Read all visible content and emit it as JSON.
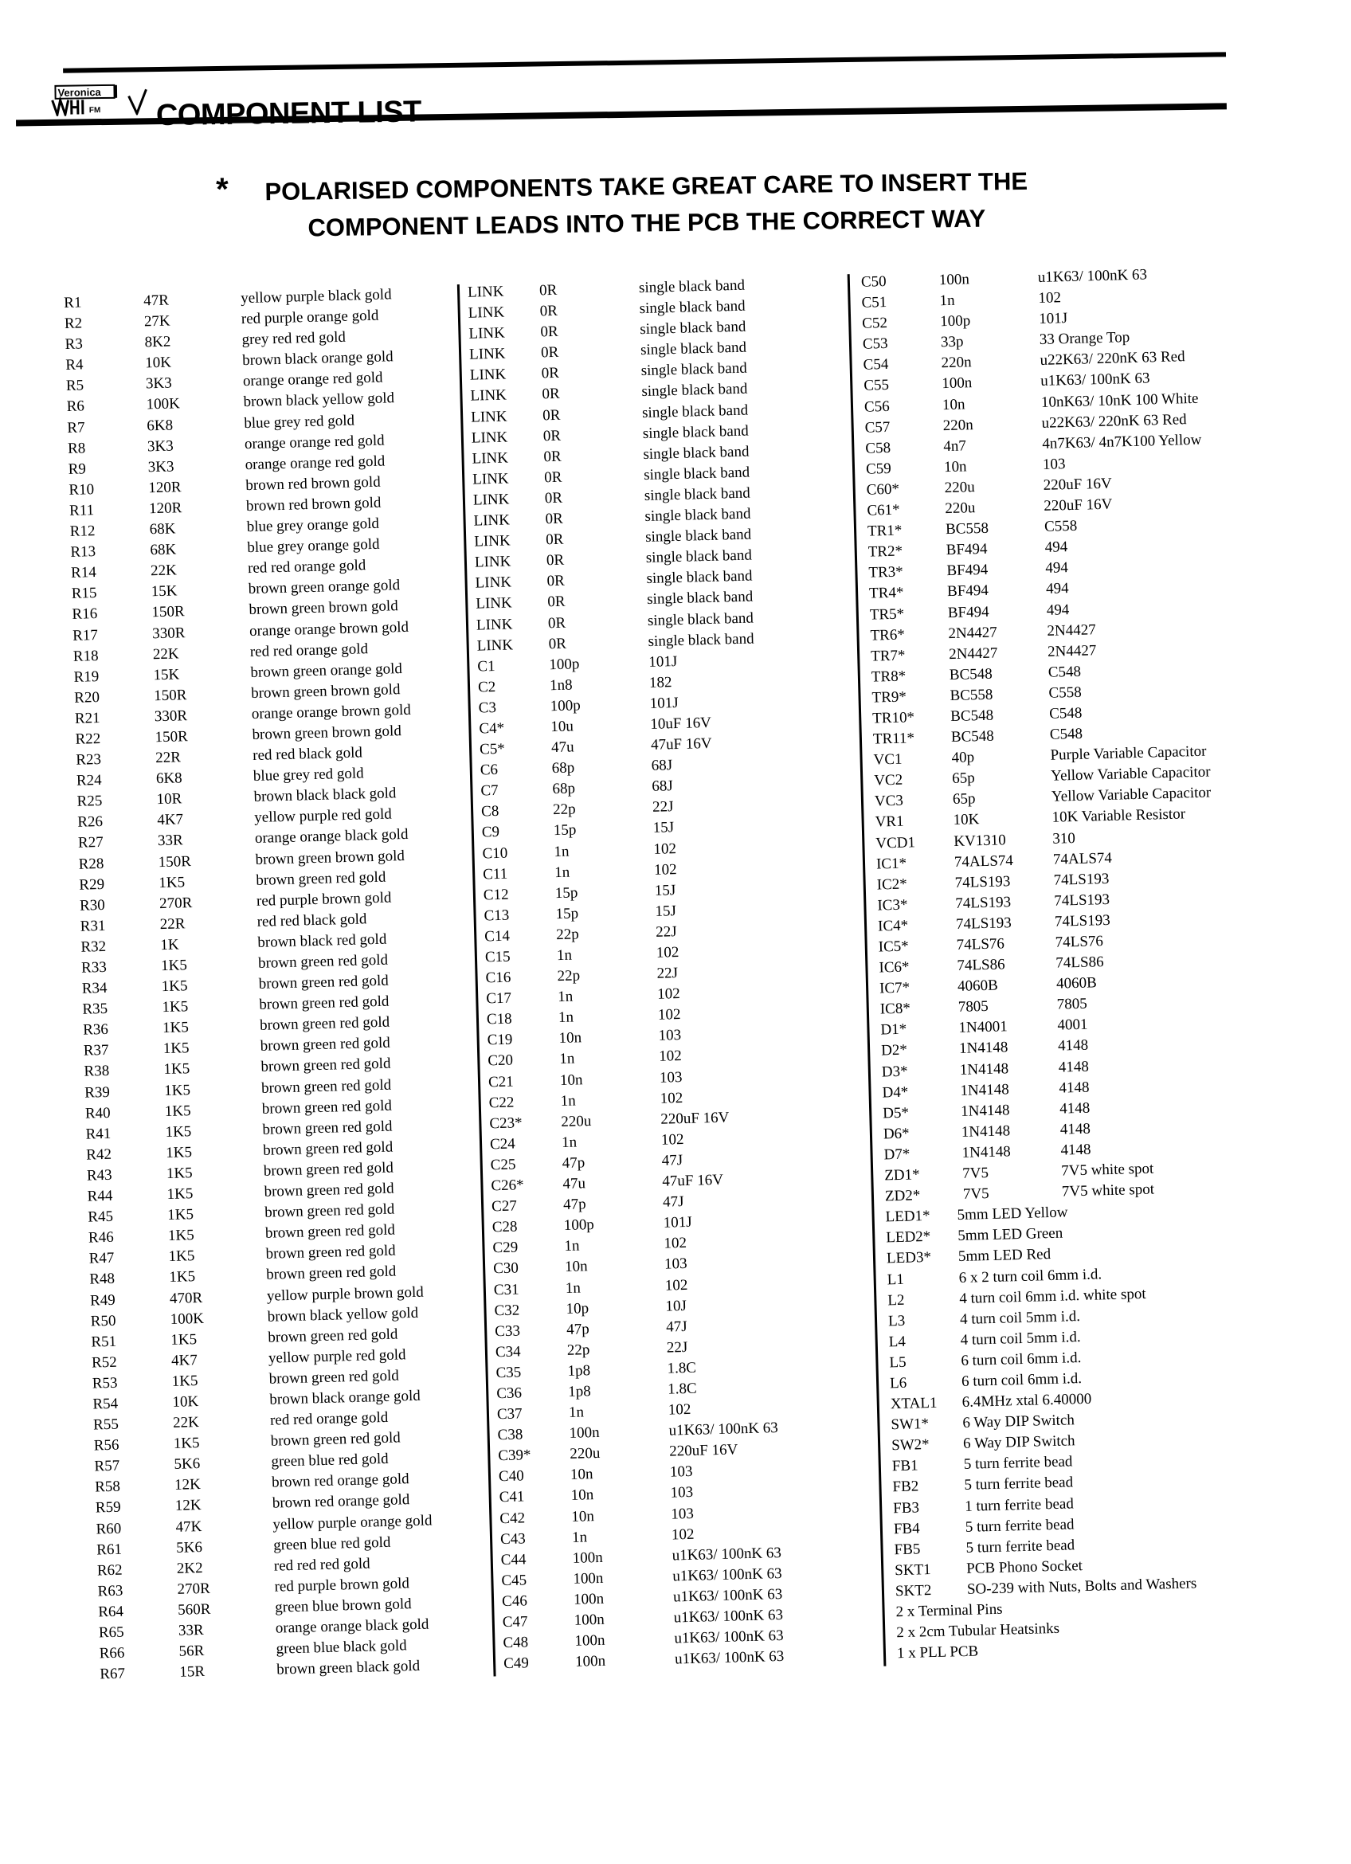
{
  "header": {
    "logo_text": "Veronica VHF FM",
    "title": "COMPONENT LIST",
    "notice_star": "*",
    "notice_line1": "POLARISED COMPONENTS TAKE GREAT CARE TO INSERT THE",
    "notice_line2": "COMPONENT LEADS INTO THE PCB THE CORRECT WAY"
  },
  "columns": [
    [
      [
        "R1",
        "47R",
        "yellow purple black gold"
      ],
      [
        "R2",
        "27K",
        "red purple orange gold"
      ],
      [
        "R3",
        "8K2",
        "grey red red gold"
      ],
      [
        "R4",
        "10K",
        "brown black orange gold"
      ],
      [
        "R5",
        "3K3",
        "orange orange red gold"
      ],
      [
        "R6",
        "100K",
        "brown black yellow gold"
      ],
      [
        "R7",
        "6K8",
        "blue grey red gold"
      ],
      [
        "R8",
        "3K3",
        "orange orange red gold"
      ],
      [
        "R9",
        "3K3",
        "orange orange red gold"
      ],
      [
        "R10",
        "120R",
        "brown red brown gold"
      ],
      [
        "R11",
        "120R",
        "brown red brown gold"
      ],
      [
        "R12",
        "68K",
        "blue grey orange gold"
      ],
      [
        "R13",
        "68K",
        "blue grey orange gold"
      ],
      [
        "R14",
        "22K",
        "red red orange gold"
      ],
      [
        "R15",
        "15K",
        "brown green orange gold"
      ],
      [
        "R16",
        "150R",
        "brown green brown gold"
      ],
      [
        "R17",
        "330R",
        "orange orange brown gold"
      ],
      [
        "R18",
        "22K",
        "red red orange gold"
      ],
      [
        "R19",
        "15K",
        "brown green orange gold"
      ],
      [
        "R20",
        "150R",
        "brown green brown gold"
      ],
      [
        "R21",
        "330R",
        "orange orange brown gold"
      ],
      [
        "R22",
        "150R",
        "brown green brown gold"
      ],
      [
        "R23",
        "22R",
        "red red black gold"
      ],
      [
        "R24",
        "6K8",
        "blue grey red gold"
      ],
      [
        "R25",
        "10R",
        "brown black black gold"
      ],
      [
        "R26",
        "4K7",
        "yellow purple red gold"
      ],
      [
        "R27",
        "33R",
        "orange orange black gold"
      ],
      [
        "R28",
        "150R",
        "brown green brown gold"
      ],
      [
        "R29",
        "1K5",
        "brown green red gold"
      ],
      [
        "R30",
        "270R",
        "red purple brown gold"
      ],
      [
        "R31",
        "22R",
        "red red black gold"
      ],
      [
        "R32",
        "1K",
        "brown black red gold"
      ],
      [
        "R33",
        "1K5",
        "brown green red gold"
      ],
      [
        "R34",
        "1K5",
        "brown green red gold"
      ],
      [
        "R35",
        "1K5",
        "brown green red gold"
      ],
      [
        "R36",
        "1K5",
        "brown green red gold"
      ],
      [
        "R37",
        "1K5",
        "brown green red gold"
      ],
      [
        "R38",
        "1K5",
        "brown green red gold"
      ],
      [
        "R39",
        "1K5",
        "brown green red gold"
      ],
      [
        "R40",
        "1K5",
        "brown green red gold"
      ],
      [
        "R41",
        "1K5",
        "brown green red gold"
      ],
      [
        "R42",
        "1K5",
        "brown green red gold"
      ],
      [
        "R43",
        "1K5",
        "brown green red gold"
      ],
      [
        "R44",
        "1K5",
        "brown green red gold"
      ],
      [
        "R45",
        "1K5",
        "brown green red gold"
      ],
      [
        "R46",
        "1K5",
        "brown green red gold"
      ],
      [
        "R47",
        "1K5",
        "brown green red gold"
      ],
      [
        "R48",
        "1K5",
        "brown green red gold"
      ],
      [
        "R49",
        "470R",
        "yellow purple brown gold"
      ],
      [
        "R50",
        "100K",
        "brown black yellow gold"
      ],
      [
        "R51",
        "1K5",
        "brown green red gold"
      ],
      [
        "R52",
        "4K7",
        "yellow purple red gold"
      ],
      [
        "R53",
        "1K5",
        "brown green red gold"
      ],
      [
        "R54",
        "10K",
        "brown black orange gold"
      ],
      [
        "R55",
        "22K",
        "red red orange gold"
      ],
      [
        "R56",
        "1K5",
        "brown green red gold"
      ],
      [
        "R57",
        "5K6",
        "green blue red gold"
      ],
      [
        "R58",
        "12K",
        "brown red orange gold"
      ],
      [
        "R59",
        "12K",
        "brown red orange gold"
      ],
      [
        "R60",
        "47K",
        "yellow purple orange gold"
      ],
      [
        "R61",
        "5K6",
        "green blue red gold"
      ],
      [
        "R62",
        "2K2",
        "red red red gold"
      ],
      [
        "R63",
        "270R",
        "red purple brown gold"
      ],
      [
        "R64",
        "560R",
        "green blue brown gold"
      ],
      [
        "R65",
        "33R",
        "orange orange black gold"
      ],
      [
        "R66",
        "56R",
        "green blue black gold"
      ],
      [
        "R67",
        "15R",
        "brown green black gold"
      ]
    ],
    [
      [
        "LINK",
        "0R",
        "single black band"
      ],
      [
        "LINK",
        "0R",
        "single black band"
      ],
      [
        "LINK",
        "0R",
        "single black band"
      ],
      [
        "LINK",
        "0R",
        "single black band"
      ],
      [
        "LINK",
        "0R",
        "single black band"
      ],
      [
        "LINK",
        "0R",
        "single black band"
      ],
      [
        "LINK",
        "0R",
        "single black band"
      ],
      [
        "LINK",
        "0R",
        "single black band"
      ],
      [
        "LINK",
        "0R",
        "single black band"
      ],
      [
        "LINK",
        "0R",
        "single black band"
      ],
      [
        "LINK",
        "0R",
        "single black band"
      ],
      [
        "LINK",
        "0R",
        "single black band"
      ],
      [
        "LINK",
        "0R",
        "single black band"
      ],
      [
        "LINK",
        "0R",
        "single black band"
      ],
      [
        "LINK",
        "0R",
        "single black band"
      ],
      [
        "LINK",
        "0R",
        "single black band"
      ],
      [
        "LINK",
        "0R",
        "single black band"
      ],
      [
        "LINK",
        "0R",
        "single black band"
      ],
      [
        "C1",
        "100p",
        "101J"
      ],
      [
        "C2",
        "1n8",
        "182"
      ],
      [
        "C3",
        "100p",
        "101J"
      ],
      [
        "C4*",
        "10u",
        "10uF 16V"
      ],
      [
        "C5*",
        "47u",
        "47uF 16V"
      ],
      [
        "C6",
        "68p",
        "68J"
      ],
      [
        "C7",
        "68p",
        "68J"
      ],
      [
        "C8",
        "22p",
        "22J"
      ],
      [
        "C9",
        "15p",
        "15J"
      ],
      [
        "C10",
        "1n",
        "102"
      ],
      [
        "C11",
        "1n",
        "102"
      ],
      [
        "C12",
        "15p",
        "15J"
      ],
      [
        "C13",
        "15p",
        "15J"
      ],
      [
        "C14",
        "22p",
        "22J"
      ],
      [
        "C15",
        "1n",
        "102"
      ],
      [
        "C16",
        "22p",
        "22J"
      ],
      [
        "C17",
        "1n",
        "102"
      ],
      [
        "C18",
        "1n",
        "102"
      ],
      [
        "C19",
        "10n",
        "103"
      ],
      [
        "C20",
        "1n",
        "102"
      ],
      [
        "C21",
        "10n",
        "103"
      ],
      [
        "C22",
        "1n",
        "102"
      ],
      [
        "C23*",
        "220u",
        "220uF 16V"
      ],
      [
        "C24",
        "1n",
        "102"
      ],
      [
        "C25",
        "47p",
        "47J"
      ],
      [
        "C26*",
        "47u",
        "47uF 16V"
      ],
      [
        "C27",
        "47p",
        "47J"
      ],
      [
        "C28",
        "100p",
        "101J"
      ],
      [
        "C29",
        "1n",
        "102"
      ],
      [
        "C30",
        "10n",
        "103"
      ],
      [
        "C31",
        "1n",
        "102"
      ],
      [
        "C32",
        "10p",
        "10J"
      ],
      [
        "C33",
        "47p",
        "47J"
      ],
      [
        "C34",
        "22p",
        "22J"
      ],
      [
        "C35",
        "1p8",
        "1.8C"
      ],
      [
        "C36",
        "1p8",
        "1.8C"
      ],
      [
        "C37",
        "1n",
        "102"
      ],
      [
        "C38",
        "100n",
        "u1K63/ 100nK 63"
      ],
      [
        "C39*",
        "220u",
        "220uF 16V"
      ],
      [
        "C40",
        "10n",
        "103"
      ],
      [
        "C41",
        "10n",
        "103"
      ],
      [
        "C42",
        "10n",
        "103"
      ],
      [
        "C43",
        "1n",
        "102"
      ],
      [
        "C44",
        "100n",
        "u1K63/ 100nK 63"
      ],
      [
        "C45",
        "100n",
        "u1K63/ 100nK 63"
      ],
      [
        "C46",
        "100n",
        "u1K63/ 100nK 63"
      ],
      [
        "C47",
        "100n",
        "u1K63/ 100nK 63"
      ],
      [
        "C48",
        "100n",
        "u1K63/ 100nK 63"
      ],
      [
        "C49",
        "100n",
        "u1K63/ 100nK 63"
      ]
    ],
    [
      [
        "C50",
        "100n",
        "u1K63/ 100nK 63"
      ],
      [
        "C51",
        "1n",
        "102"
      ],
      [
        "C52",
        "100p",
        "101J"
      ],
      [
        "C53",
        "33p",
        "33 Orange Top"
      ],
      [
        "C54",
        "220n",
        "u22K63/ 220nK 63 Red"
      ],
      [
        "C55",
        "100n",
        "u1K63/ 100nK 63"
      ],
      [
        "C56",
        "10n",
        "10nK63/ 10nK 100 White"
      ],
      [
        "C57",
        "220n",
        "u22K63/ 220nK 63 Red"
      ],
      [
        "C58",
        "4n7",
        "4n7K63/ 4n7K100 Yellow"
      ],
      [
        "C59",
        "10n",
        "103"
      ],
      [
        "C60*",
        "220u",
        "220uF 16V"
      ],
      [
        "C61*",
        "220u",
        "220uF 16V"
      ],
      [
        "TR1*",
        "BC558",
        "C558"
      ],
      [
        "TR2*",
        "BF494",
        "494"
      ],
      [
        "TR3*",
        "BF494",
        "494"
      ],
      [
        "TR4*",
        "BF494",
        "494"
      ],
      [
        "TR5*",
        "BF494",
        "494"
      ],
      [
        "TR6*",
        "2N4427",
        "2N4427"
      ],
      [
        "TR7*",
        "2N4427",
        "2N4427"
      ],
      [
        "TR8*",
        "BC548",
        "C548"
      ],
      [
        "TR9*",
        "BC558",
        "C558"
      ],
      [
        "TR10*",
        "BC548",
        "C548"
      ],
      [
        "TR11*",
        "BC548",
        "C548"
      ],
      [
        "VC1",
        "40p",
        "Purple Variable Capacitor"
      ],
      [
        "VC2",
        "65p",
        "Yellow Variable Capacitor"
      ],
      [
        "VC3",
        "65p",
        "Yellow Variable Capacitor"
      ],
      [
        "VR1",
        "10K",
        "10K Variable Resistor"
      ],
      [
        "VCD1",
        "KV1310",
        "310"
      ],
      [
        "IC1*",
        "74ALS74",
        "74ALS74"
      ],
      [
        "IC2*",
        "74LS193",
        "74LS193"
      ],
      [
        "IC3*",
        "74LS193",
        "74LS193"
      ],
      [
        "IC4*",
        "74LS193",
        "74LS193"
      ],
      [
        "IC5*",
        "74LS76",
        "74LS76"
      ],
      [
        "IC6*",
        "74LS86",
        "74LS86"
      ],
      [
        "IC7*",
        "4060B",
        "4060B"
      ],
      [
        "IC8*",
        "7805",
        "7805"
      ],
      [
        "D1*",
        "1N4001",
        "4001"
      ],
      [
        "D2*",
        "1N4148",
        "4148"
      ],
      [
        "D3*",
        "1N4148",
        "4148"
      ],
      [
        "D4*",
        "1N4148",
        "4148"
      ],
      [
        "D5*",
        "1N4148",
        "4148"
      ],
      [
        "D6*",
        "1N4148",
        "4148"
      ],
      [
        "D7*",
        "1N4148",
        "4148"
      ],
      [
        "ZD1*",
        "7V5",
        "7V5 white spot"
      ],
      [
        "ZD2*",
        "7V5",
        "7V5 white spot"
      ],
      [
        "LED1*",
        "5mm LED Yellow"
      ],
      [
        "LED2*",
        "5mm LED Green"
      ],
      [
        "LED3*",
        "5mm LED Red"
      ],
      [
        "L1",
        "6 x 2 turn coil 6mm i.d."
      ],
      [
        "L2",
        "4 turn coil 6mm i.d. white spot"
      ],
      [
        "L3",
        "4 turn coil 5mm i.d."
      ],
      [
        "L4",
        "4 turn coil 5mm i.d."
      ],
      [
        "L5",
        "6 turn coil 6mm i.d."
      ],
      [
        "L6",
        "6 turn coil 6mm i.d."
      ],
      [
        "XTAL1",
        "6.4MHz xtal  6.40000"
      ],
      [
        "SW1*",
        "6 Way DIP Switch"
      ],
      [
        "SW2*",
        "6 Way DIP Switch"
      ],
      [
        "FB1",
        "5 turn ferrite bead"
      ],
      [
        "FB2",
        "5 turn ferrite bead"
      ],
      [
        "FB3",
        "1 turn ferrite bead"
      ],
      [
        "FB4",
        "5 turn ferrite bead"
      ],
      [
        "FB5",
        "5 turn ferrite bead"
      ],
      [
        "SKT1",
        "PCB Phono Socket"
      ],
      [
        "SKT2",
        "SO-239 with Nuts, Bolts and Washers"
      ],
      [
        "2 x Terminal Pins"
      ],
      [
        "2 x 2cm Tubular Heatsinks"
      ],
      [
        "1 x PLL PCB"
      ]
    ]
  ]
}
